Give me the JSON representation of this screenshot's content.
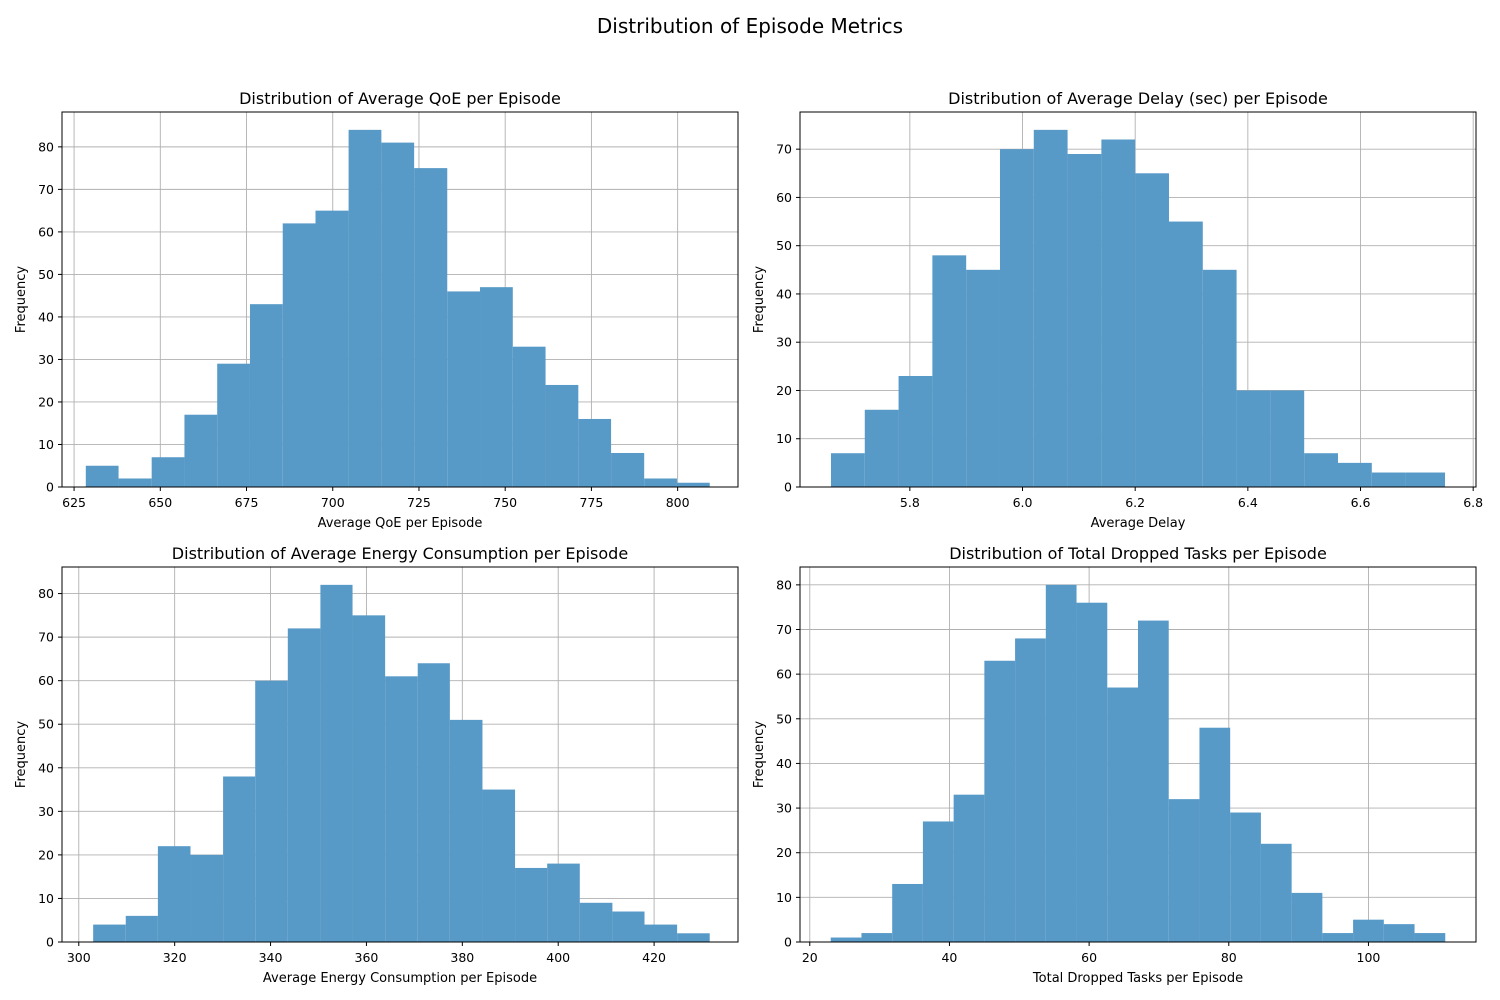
{
  "figure": {
    "suptitle": "Distribution of Episode Metrics"
  },
  "colors": {
    "bar": "#5799c7",
    "grid": "#b0b0b0",
    "axes": "#000000"
  },
  "chart_data": [
    {
      "type": "bar",
      "title": "Distribution of Average QoE per Episode",
      "xlabel": "Average QoE per Episode",
      "ylabel": "Frequency",
      "xlim": [
        621.5,
        817.5
      ],
      "ylim": [
        0,
        88.2
      ],
      "xticks": [
        625,
        650,
        675,
        700,
        725,
        750,
        775,
        800
      ],
      "yticks": [
        0,
        10,
        20,
        30,
        40,
        50,
        60,
        70,
        80
      ],
      "grid": true,
      "bin_edges": [
        628.4,
        637.9,
        647.5,
        657.0,
        666.5,
        676.0,
        685.5,
        695.0,
        704.6,
        714.1,
        723.6,
        733.2,
        742.7,
        752.2,
        761.7,
        771.2,
        780.7,
        790.3,
        799.8,
        809.3
      ],
      "values": [
        5,
        2,
        7,
        17,
        29,
        43,
        62,
        65,
        84,
        81,
        75,
        46,
        47,
        33,
        24,
        16,
        8,
        2,
        1
      ]
    },
    {
      "type": "bar",
      "title": "Distribution of Average Delay (sec) per Episode",
      "xlabel": "Average Delay",
      "ylabel": "Frequency",
      "xlim": [
        5.605,
        6.805
      ],
      "ylim": [
        0,
        77.7
      ],
      "xticks": [
        5.8,
        6.0,
        6.2,
        6.4,
        6.6,
        6.8
      ],
      "xtick_labels": [
        "5.8",
        "6.0",
        "6.2",
        "6.4",
        "6.6",
        "6.8"
      ],
      "yticks": [
        0,
        10,
        20,
        30,
        40,
        50,
        60,
        70
      ],
      "grid": true,
      "bin_edges": [
        5.66,
        5.72,
        5.78,
        5.84,
        5.9,
        5.96,
        6.02,
        6.08,
        6.14,
        6.2,
        6.26,
        6.32,
        6.38,
        6.44,
        6.5,
        6.56,
        6.62,
        6.68,
        6.75
      ],
      "values": [
        7,
        16,
        23,
        48,
        45,
        70,
        74,
        69,
        72,
        65,
        55,
        45,
        20,
        20,
        7,
        5,
        3,
        3
      ]
    },
    {
      "type": "bar",
      "title": "Distribution of Average Energy Consumption per Episode",
      "xlabel": "Average Energy Consumption per Episode",
      "ylabel": "Frequency",
      "xlim": [
        296.5,
        437.5
      ],
      "ylim": [
        0,
        86.1
      ],
      "xticks": [
        300,
        320,
        340,
        360,
        380,
        400,
        420
      ],
      "yticks": [
        0,
        10,
        20,
        30,
        40,
        50,
        60,
        70,
        80
      ],
      "grid": true,
      "bin_edges": [
        303.0,
        309.8,
        316.5,
        323.3,
        330.1,
        336.8,
        343.6,
        350.4,
        357.1,
        363.9,
        370.7,
        377.4,
        384.2,
        391.0,
        397.7,
        404.5,
        411.3,
        418.0,
        424.8,
        431.6
      ],
      "values": [
        4,
        6,
        22,
        20,
        38,
        60,
        72,
        82,
        75,
        61,
        64,
        51,
        35,
        17,
        18,
        9,
        7,
        4,
        2
      ]
    },
    {
      "type": "bar",
      "title": "Distribution of Total Dropped Tasks per Episode",
      "xlabel": "Total Dropped Tasks per Episode",
      "ylabel": "Frequency",
      "xlim": [
        18.6,
        115.4
      ],
      "ylim": [
        0,
        84
      ],
      "xticks": [
        20,
        40,
        60,
        80,
        100
      ],
      "yticks": [
        0,
        10,
        20,
        30,
        40,
        50,
        60,
        70,
        80
      ],
      "grid": true,
      "bin_edges": [
        23.0,
        27.4,
        31.8,
        36.2,
        40.6,
        45.0,
        49.4,
        53.8,
        58.2,
        62.6,
        67.0,
        71.4,
        75.8,
        80.2,
        84.6,
        89.0,
        93.4,
        97.8,
        102.2,
        106.6,
        111.0
      ],
      "values": [
        1,
        2,
        13,
        27,
        33,
        63,
        68,
        80,
        76,
        57,
        72,
        32,
        48,
        29,
        22,
        11,
        2,
        5,
        4,
        2
      ]
    }
  ]
}
